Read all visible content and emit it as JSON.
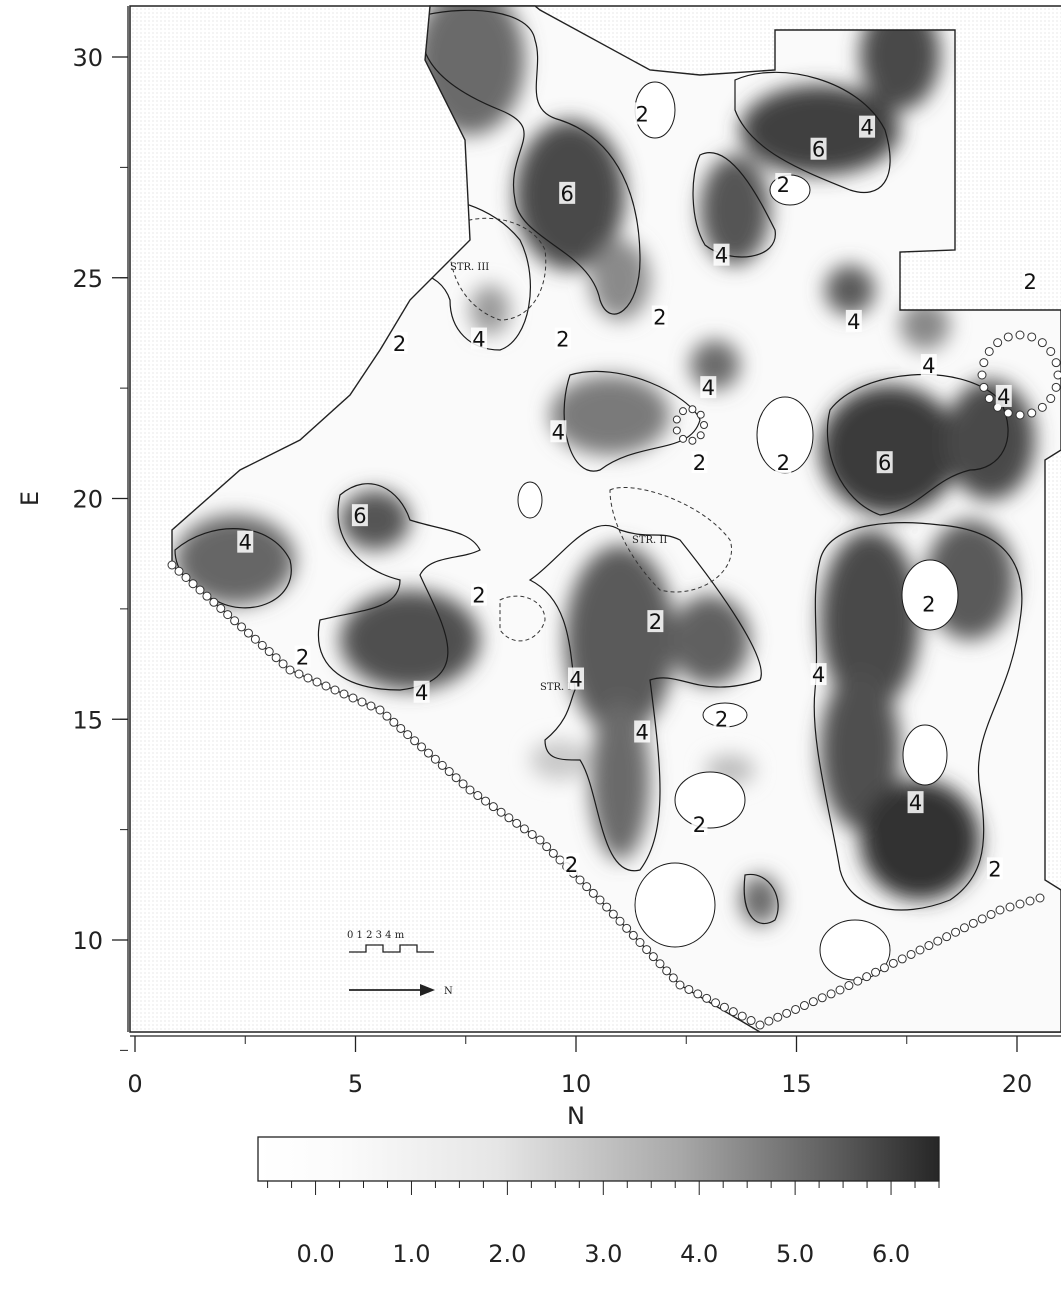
{
  "axes": {
    "x_label": "N",
    "y_label": "E",
    "x_ticks": [
      "0",
      "5",
      "10",
      "15",
      "20"
    ],
    "y_ticks": [
      "10",
      "15",
      "20",
      "25",
      "30"
    ],
    "x_range": [
      0,
      21
    ],
    "y_range": [
      8,
      30.5
    ]
  },
  "annotations": {
    "structures": [
      "STR. III",
      "STR. II",
      "STR. I"
    ],
    "scale_ticks": "0 1 2 3 4 m",
    "north_arrow": "N"
  },
  "contour_labels": [
    {
      "text": "2",
      "n": 11.5,
      "e": 28.7
    },
    {
      "text": "6",
      "n": 15.5,
      "e": 27.9
    },
    {
      "text": "4",
      "n": 16.6,
      "e": 28.4
    },
    {
      "text": "2",
      "n": 14.7,
      "e": 27.1
    },
    {
      "text": "6",
      "n": 9.8,
      "e": 26.9
    },
    {
      "text": "4",
      "n": 13.3,
      "e": 25.5
    },
    {
      "text": "2",
      "n": 11.9,
      "e": 24.1
    },
    {
      "text": "4",
      "n": 16.3,
      "e": 24.0
    },
    {
      "text": "2",
      "n": 20.3,
      "e": 24.9
    },
    {
      "text": "2",
      "n": 6.0,
      "e": 23.5
    },
    {
      "text": "4",
      "n": 7.8,
      "e": 23.6
    },
    {
      "text": "2",
      "n": 9.7,
      "e": 23.6
    },
    {
      "text": "4",
      "n": 18.0,
      "e": 23.0
    },
    {
      "text": "4",
      "n": 13.0,
      "e": 22.5
    },
    {
      "text": "4",
      "n": 19.7,
      "e": 22.3
    },
    {
      "text": "4",
      "n": 9.6,
      "e": 21.5
    },
    {
      "text": "2",
      "n": 12.8,
      "e": 20.8
    },
    {
      "text": "2",
      "n": 14.7,
      "e": 20.8
    },
    {
      "text": "6",
      "n": 17.0,
      "e": 20.8
    },
    {
      "text": "6",
      "n": 5.1,
      "e": 19.6
    },
    {
      "text": "4",
      "n": 2.5,
      "e": 19.0
    },
    {
      "text": "2",
      "n": 7.8,
      "e": 17.8
    },
    {
      "text": "2",
      "n": 18.0,
      "e": 17.6
    },
    {
      "text": "2",
      "n": 11.8,
      "e": 17.2
    },
    {
      "text": "2",
      "n": 3.8,
      "e": 16.4
    },
    {
      "text": "4",
      "n": 10.0,
      "e": 15.9
    },
    {
      "text": "4",
      "n": 15.5,
      "e": 16.0
    },
    {
      "text": "4",
      "n": 6.5,
      "e": 15.6
    },
    {
      "text": "2",
      "n": 13.3,
      "e": 15.0
    },
    {
      "text": "4",
      "n": 11.5,
      "e": 14.7
    },
    {
      "text": "4",
      "n": 17.7,
      "e": 13.1
    },
    {
      "text": "2",
      "n": 12.8,
      "e": 12.6
    },
    {
      "text": "2",
      "n": 9.9,
      "e": 11.7
    },
    {
      "text": "2",
      "n": 19.5,
      "e": 11.6
    }
  ],
  "colorbar": {
    "ticks": [
      "0.0",
      "1.0",
      "2.0",
      "3.0",
      "4.0",
      "5.0",
      "6.0"
    ],
    "min": -0.6,
    "max": 6.5
  },
  "colors": {
    "low": "#ffffff",
    "high": "#2a2a2a",
    "contour_line": "#1a1a1a",
    "background": "#f5f5f5"
  }
}
